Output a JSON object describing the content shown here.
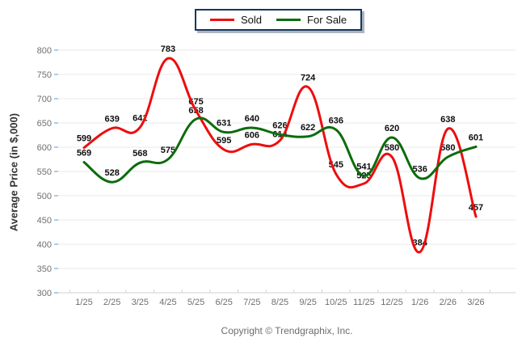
{
  "legend": {
    "items": [
      {
        "label": "Sold"
      },
      {
        "label": "For Sale"
      }
    ]
  },
  "y_axis": {
    "title": "Average Price (in $,000)",
    "ticks": [
      800,
      750,
      700,
      650,
      600,
      550,
      500,
      450,
      400,
      350,
      300
    ]
  },
  "footer": {
    "copyright": "Copyright © Trendgraphix, Inc."
  },
  "chart_data": {
    "type": "line",
    "title": "",
    "ylabel": "Average Price (in $,000)",
    "xlabel": "",
    "ylim": [
      300,
      800
    ],
    "ytick_step": 50,
    "grid": "horizontal",
    "legend_position": "top-center",
    "categories": [
      "1/25",
      "2/25",
      "3/25",
      "4/25",
      "5/25",
      "6/25",
      "7/25",
      "8/25",
      "9/25",
      "10/25",
      "11/25",
      "12/25",
      "1/26",
      "2/26",
      "3/26"
    ],
    "series": [
      {
        "name": "Sold",
        "color": "#ee0d0d",
        "values": [
          599,
          639,
          641,
          783,
          675,
          595,
          606,
          614,
          724,
          545,
          525,
          580,
          384,
          638,
          457
        ]
      },
      {
        "name": "For Sale",
        "color": "#0b6c0b",
        "values": [
          569,
          528,
          568,
          575,
          658,
          631,
          640,
          626,
          622,
          636,
          541,
          620,
          536,
          580,
          601
        ]
      }
    ],
    "colors": {
      "gridline": "#e9e9e9",
      "axis_line": "#d2d2d2",
      "tick_label": "#6f6f6f",
      "data_label": "#0f0f0f",
      "y_axis_mini_tick": "#abcdec",
      "legend_border": "#17375e"
    }
  }
}
